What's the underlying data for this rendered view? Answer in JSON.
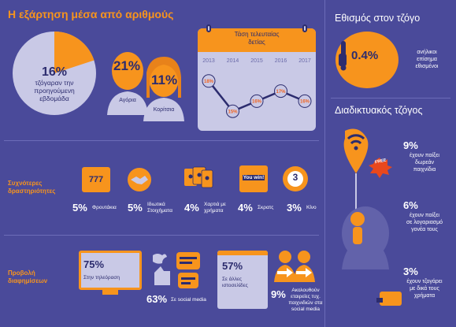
{
  "header": {
    "title": "Η εξάρτηση μέσα από αριθμούς"
  },
  "weekly": {
    "value": "16%",
    "line1": "τζόγαραν την",
    "line2": "προηγούμενη",
    "line3": "εβδομάδα"
  },
  "gender": {
    "boys": {
      "value": "21%",
      "label": "Αγόρια"
    },
    "girls": {
      "value": "11%",
      "label": "Κορίτσια"
    }
  },
  "trend": {
    "title_line1": "Τάση τελευταίας",
    "title_line2": "δετίας",
    "chart_data": {
      "type": "line",
      "title": "Τάση τελευταίας δετίας",
      "categories": [
        "2013",
        "2014",
        "2015",
        "2016",
        "2017"
      ],
      "values": [
        18,
        15,
        16,
        17,
        16
      ],
      "labels": [
        "18%",
        "15%",
        "16%",
        "17%",
        "16%"
      ],
      "ylim": [
        14,
        19
      ]
    }
  },
  "habit": {
    "title": "Εθισμός στον τζόγο",
    "value": "0.4%",
    "line1": "ανήλικοι",
    "line2": "επίσημα",
    "line3": "εθισμένοι"
  },
  "online": {
    "title": "Διαδικτυακός τζόγος",
    "free_badge": "FREE",
    "items": [
      {
        "value": "9%",
        "line1": "έχουν παίξει",
        "line2": "δωρεάν",
        "line3": "παιχνίδια"
      },
      {
        "value": "6%",
        "line1": "έχουν παίξει",
        "line2": "σε λογαριασμό",
        "line3": "γονέα τους"
      },
      {
        "value": "3%",
        "line1": "έχουν τζογάρει",
        "line2": "με δικά τους",
        "line3": "χρήματα"
      }
    ]
  },
  "activities": {
    "label_line1": "Συχνότερες",
    "label_line2": "δραστηριότητες",
    "items": [
      {
        "value": "5%",
        "line1": "Φρουτάκια",
        "line2": "",
        "icon": "slot-machine-icon",
        "icon_text": "777"
      },
      {
        "value": "5%",
        "line1": "Ιδιωτικά",
        "line2": "Στοιχήματα",
        "icon": "handshake-icon",
        "icon_text": ""
      },
      {
        "value": "4%",
        "line1": "Χαρτιά με",
        "line2": "χρήματα",
        "icon": "playing-cards-icon",
        "icon_text": ""
      },
      {
        "value": "4%",
        "line1": "Σκρατς",
        "line2": "",
        "icon": "scratch-card-icon",
        "icon_text": "You win!"
      },
      {
        "value": "3%",
        "line1": "Κίνο",
        "line2": "",
        "icon": "lottery-ball-icon",
        "icon_text": "3"
      }
    ]
  },
  "ads": {
    "label_line1": "Προβολή",
    "label_line2": "διαφημίσεων",
    "tv": {
      "value": "75%",
      "label": "Στην τηλεόραση"
    },
    "social": {
      "value": "63%",
      "label": "Σε social media"
    },
    "sites": {
      "value": "57%",
      "line1": "Σε άλλες",
      "line2": "ιστοσελίδες"
    },
    "follow": {
      "value": "9%",
      "line1": "Ακολουθούν",
      "line2": "εταιρείες τυχ.",
      "line3": "παιχνιδιών στα",
      "line4": "social media"
    }
  },
  "colors": {
    "background": "#4a4a9a",
    "accent": "#f7941d",
    "dark": "#2c2c6e",
    "light": "#c9c9e6"
  }
}
